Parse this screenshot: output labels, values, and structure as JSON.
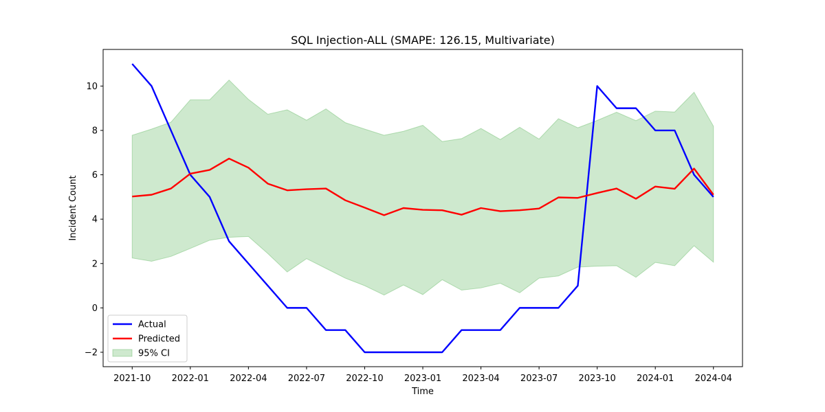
{
  "chart_data": {
    "type": "line",
    "title": "SQL Injection-ALL (SMAPE: 126.15, Multivariate)",
    "xlabel": "Time",
    "ylabel": "Incident Count",
    "x": [
      "2021-10",
      "2021-11",
      "2021-12",
      "2022-01",
      "2022-02",
      "2022-03",
      "2022-04",
      "2022-05",
      "2022-06",
      "2022-07",
      "2022-08",
      "2022-09",
      "2022-10",
      "2022-11",
      "2022-12",
      "2023-01",
      "2023-02",
      "2023-03",
      "2023-04",
      "2023-05",
      "2023-06",
      "2023-07",
      "2023-08",
      "2023-09",
      "2023-10",
      "2023-11",
      "2023-12",
      "2024-01",
      "2024-02",
      "2024-03",
      "2024-04"
    ],
    "xticks": [
      "2021-10",
      "2022-01",
      "2022-04",
      "2022-07",
      "2022-10",
      "2023-01",
      "2023-04",
      "2023-07",
      "2023-10",
      "2024-01",
      "2024-04"
    ],
    "yticks": [
      "−2",
      "0",
      "2",
      "4",
      "6",
      "8",
      "10"
    ],
    "ylim": [
      -2.65,
      11.65
    ],
    "series": [
      {
        "name": "Actual",
        "color": "#0000ff",
        "values": [
          11,
          10,
          8,
          6,
          5,
          3,
          2,
          1,
          0,
          0,
          -1,
          -1,
          -2,
          -2,
          -2,
          -2,
          -2,
          -1,
          -1,
          -1,
          0,
          0,
          0,
          1,
          10,
          9,
          9,
          8,
          8,
          6,
          5
        ]
      },
      {
        "name": "Predicted",
        "color": "#ff0000",
        "values": [
          5.02,
          5.1,
          5.38,
          6.05,
          6.22,
          6.73,
          6.32,
          5.6,
          5.3,
          5.35,
          5.38,
          4.85,
          4.52,
          4.18,
          4.5,
          4.42,
          4.4,
          4.2,
          4.5,
          4.36,
          4.4,
          4.48,
          4.98,
          4.96,
          5.18,
          5.38,
          4.92,
          5.47,
          5.37,
          6.28,
          5.1
        ]
      }
    ],
    "ci": {
      "name": "95% CI",
      "color": "#2ca02c",
      "lower": [
        2.25,
        2.1,
        2.32,
        2.68,
        3.05,
        3.18,
        3.22,
        2.45,
        1.62,
        2.22,
        1.78,
        1.34,
        1.0,
        0.58,
        1.03,
        0.6,
        1.27,
        0.8,
        0.9,
        1.11,
        0.68,
        1.34,
        1.44,
        1.84,
        1.88,
        1.9,
        1.38,
        2.05,
        1.9,
        2.8,
        2.06
      ],
      "upper": [
        7.78,
        8.06,
        8.37,
        9.38,
        9.38,
        10.27,
        9.4,
        8.73,
        8.93,
        8.46,
        8.97,
        8.35,
        8.06,
        7.78,
        7.96,
        8.23,
        7.5,
        7.63,
        8.09,
        7.59,
        8.14,
        7.61,
        8.53,
        8.12,
        8.45,
        8.82,
        8.44,
        8.87,
        8.83,
        9.72,
        8.19
      ]
    },
    "legend_position": "lower-left",
    "grid": false
  }
}
